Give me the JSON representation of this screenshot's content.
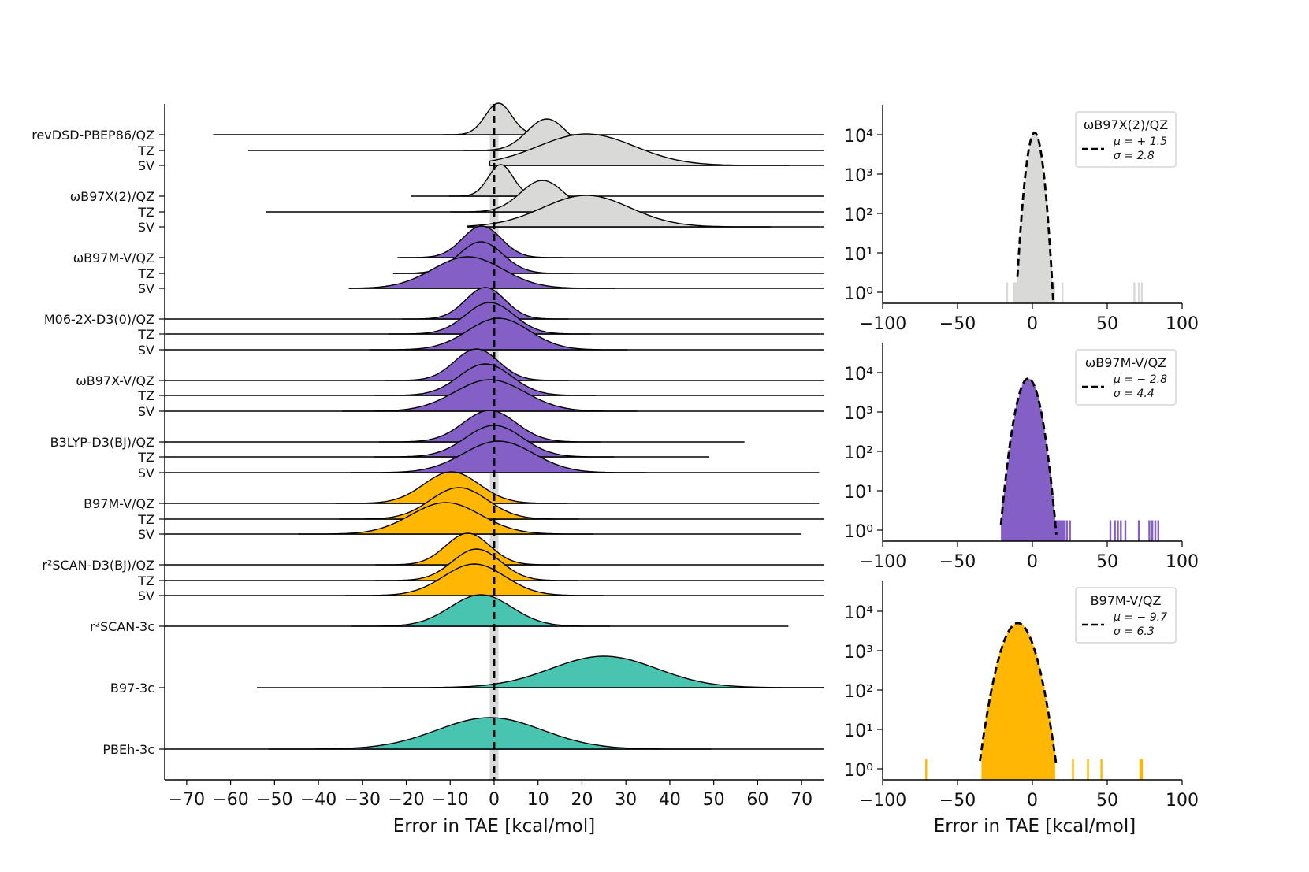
{
  "colors": {
    "hybrid": "#d9dad7",
    "meta": "#8460c6",
    "semilocal": "#ffb703",
    "composite": "#48c4b0",
    "reference_band": "#d9d9d9",
    "axis": "#000000"
  },
  "chart_data": [
    {
      "type": "ridgeline",
      "xlabel": "Error in TAE [kcal/mol]",
      "xlim": [
        -75,
        75
      ],
      "xticks": [
        -70,
        -60,
        -50,
        -40,
        -30,
        -20,
        -10,
        0,
        10,
        20,
        30,
        40,
        50,
        60,
        70
      ],
      "xtick_labels": [
        "−70",
        "−60",
        "−50",
        "−40",
        "−30",
        "−20",
        "−10",
        "0",
        "10",
        "20",
        "30",
        "40",
        "50",
        "60",
        "70"
      ],
      "zero_line": 0,
      "reference_band": [
        -1,
        1
      ],
      "series": [
        {
          "label": "revDSD-PBEP86/QZ",
          "group": "hybrid",
          "mean": 1.0,
          "sigma": 3.0,
          "min": -64,
          "max": 75
        },
        {
          "label": "TZ",
          "group": "hybrid",
          "mean": 12.0,
          "sigma": 4.5,
          "min": -56,
          "max": 75
        },
        {
          "label": "SV",
          "group": "hybrid",
          "mean": 21.0,
          "sigma": 11.0,
          "min": -1,
          "max": 75
        },
        {
          "label": "ωB97X(2)/QZ",
          "group": "hybrid",
          "mean": 1.5,
          "sigma": 2.8,
          "min": -19,
          "max": 75
        },
        {
          "label": "TZ",
          "group": "hybrid",
          "mean": 11.0,
          "sigma": 5.0,
          "min": -52,
          "max": 75
        },
        {
          "label": "SV",
          "group": "hybrid",
          "mean": 21.0,
          "sigma": 10.0,
          "min": -6,
          "max": 75
        },
        {
          "label": "ωB97M-V/QZ",
          "group": "meta",
          "mean": -2.8,
          "sigma": 4.4,
          "min": -22,
          "max": 75
        },
        {
          "label": "TZ",
          "group": "meta",
          "mean": -3.0,
          "sigma": 5.0,
          "min": -23,
          "max": 75
        },
        {
          "label": "SV",
          "group": "meta",
          "mean": -6.0,
          "sigma": 8.0,
          "min": -33,
          "max": 75
        },
        {
          "label": "M06-2X-D3(0)/QZ",
          "group": "meta",
          "mean": -2.0,
          "sigma": 4.5,
          "min": -75,
          "max": 75
        },
        {
          "label": "TZ",
          "group": "meta",
          "mean": -1.0,
          "sigma": 5.5,
          "min": -75,
          "max": 75
        },
        {
          "label": "SV",
          "group": "meta",
          "mean": 1.0,
          "sigma": 7.0,
          "min": -75,
          "max": 75
        },
        {
          "label": "ωB97X-V/QZ",
          "group": "meta",
          "mean": -4.0,
          "sigma": 5.0,
          "min": -75,
          "max": 75
        },
        {
          "label": "TZ",
          "group": "meta",
          "mean": -2.0,
          "sigma": 6.0,
          "min": -75,
          "max": 75
        },
        {
          "label": "SV",
          "group": "meta",
          "mean": -1.0,
          "sigma": 8.0,
          "min": -75,
          "max": 75
        },
        {
          "label": "B3LYP-D3(BJ)/QZ",
          "group": "meta",
          "mean": -1.0,
          "sigma": 6.0,
          "min": -75,
          "max": 57
        },
        {
          "label": "TZ",
          "group": "meta",
          "mean": 0.0,
          "sigma": 6.5,
          "min": -75,
          "max": 49
        },
        {
          "label": "SV",
          "group": "meta",
          "mean": 1.0,
          "sigma": 8.0,
          "min": -75,
          "max": 74
        },
        {
          "label": "B97M-V/QZ",
          "group": "semilocal",
          "mean": -9.7,
          "sigma": 6.3,
          "min": -75,
          "max": 74
        },
        {
          "label": "TZ",
          "group": "semilocal",
          "mean": -8.0,
          "sigma": 6.5,
          "min": -75,
          "max": 75
        },
        {
          "label": "SV",
          "group": "semilocal",
          "mean": -11.0,
          "sigma": 8.0,
          "min": -75,
          "max": 70
        },
        {
          "label": "r²SCAN-D3(BJ)/QZ",
          "group": "semilocal",
          "mean": -6.0,
          "sigma": 5.0,
          "min": -75,
          "max": 75
        },
        {
          "label": "TZ",
          "group": "semilocal",
          "mean": -4.0,
          "sigma": 5.5,
          "min": -75,
          "max": 75
        },
        {
          "label": "SV",
          "group": "semilocal",
          "mean": -4.5,
          "sigma": 7.0,
          "min": -75,
          "max": 75
        },
        {
          "label": "r²SCAN-3c",
          "group": "composite",
          "mean": -3.0,
          "sigma": 7.0,
          "min": -75,
          "max": 67
        },
        {
          "label": "B97-3c",
          "group": "composite",
          "mean": 25.0,
          "sigma": 12.0,
          "min": -54,
          "max": 75
        },
        {
          "label": "PBEh-3c",
          "group": "composite",
          "mean": -1.0,
          "sigma": 12.0,
          "min": -75,
          "max": 75
        }
      ]
    },
    {
      "type": "histogram-log",
      "title": "ωB97X(2)/QZ",
      "color": "#d9dad7",
      "xlabel": "",
      "xlim": [
        -100,
        100
      ],
      "xticks": [
        -100,
        -50,
        0,
        50,
        100
      ],
      "xtick_labels": [
        "−100",
        "−50",
        "0",
        "50",
        "100"
      ],
      "yticks": [
        "10⁰",
        "10¹",
        "10²",
        "10³",
        "10⁴"
      ],
      "fit": {
        "mu": 1.5,
        "sigma": 2.8,
        "mu_label": "μ = + 1.5",
        "sigma_label": "σ = 2.8",
        "peak_log": 4.05,
        "range": [
          -10,
          14
        ]
      },
      "bulk_range": [
        -13,
        15
      ],
      "outliers": [
        -17,
        20,
        68,
        71,
        73
      ]
    },
    {
      "type": "histogram-log",
      "title": "ωB97M-V/QZ",
      "color": "#8460c6",
      "xlabel": "",
      "xlim": [
        -100,
        100
      ],
      "xticks": [
        -100,
        -50,
        0,
        50,
        100
      ],
      "xtick_labels": [
        "−100",
        "−50",
        "0",
        "50",
        "100"
      ],
      "yticks": [
        "10⁰",
        "10¹",
        "10²",
        "10³",
        "10⁴"
      ],
      "fit": {
        "mu": -2.8,
        "sigma": 4.4,
        "mu_label": "μ = − 2.8",
        "sigma_label": "σ = 4.4",
        "peak_log": 3.85,
        "range": [
          -21,
          16
        ]
      },
      "bulk_range": [
        -21,
        22
      ],
      "outliers": [
        -20,
        23,
        25,
        52,
        55,
        57,
        59,
        62,
        71,
        78,
        80,
        82,
        84
      ]
    },
    {
      "type": "histogram-log",
      "title": "B97M-V/QZ",
      "color": "#ffb703",
      "xlabel": "Error in TAE [kcal/mol]",
      "xlim": [
        -100,
        100
      ],
      "xticks": [
        -100,
        -50,
        0,
        50,
        100
      ],
      "xtick_labels": [
        "−100",
        "−50",
        "0",
        "50",
        "100"
      ],
      "yticks": [
        "10⁰",
        "10¹",
        "10²",
        "10³",
        "10⁴"
      ],
      "fit": {
        "mu": -9.7,
        "sigma": 6.3,
        "mu_label": "μ = − 9.7",
        "sigma_label": "σ = 6.3",
        "peak_log": 3.7,
        "range": [
          -35,
          16
        ]
      },
      "bulk_range": [
        -34,
        15
      ],
      "outliers": [
        -71,
        27,
        37,
        46,
        72,
        73
      ]
    }
  ]
}
